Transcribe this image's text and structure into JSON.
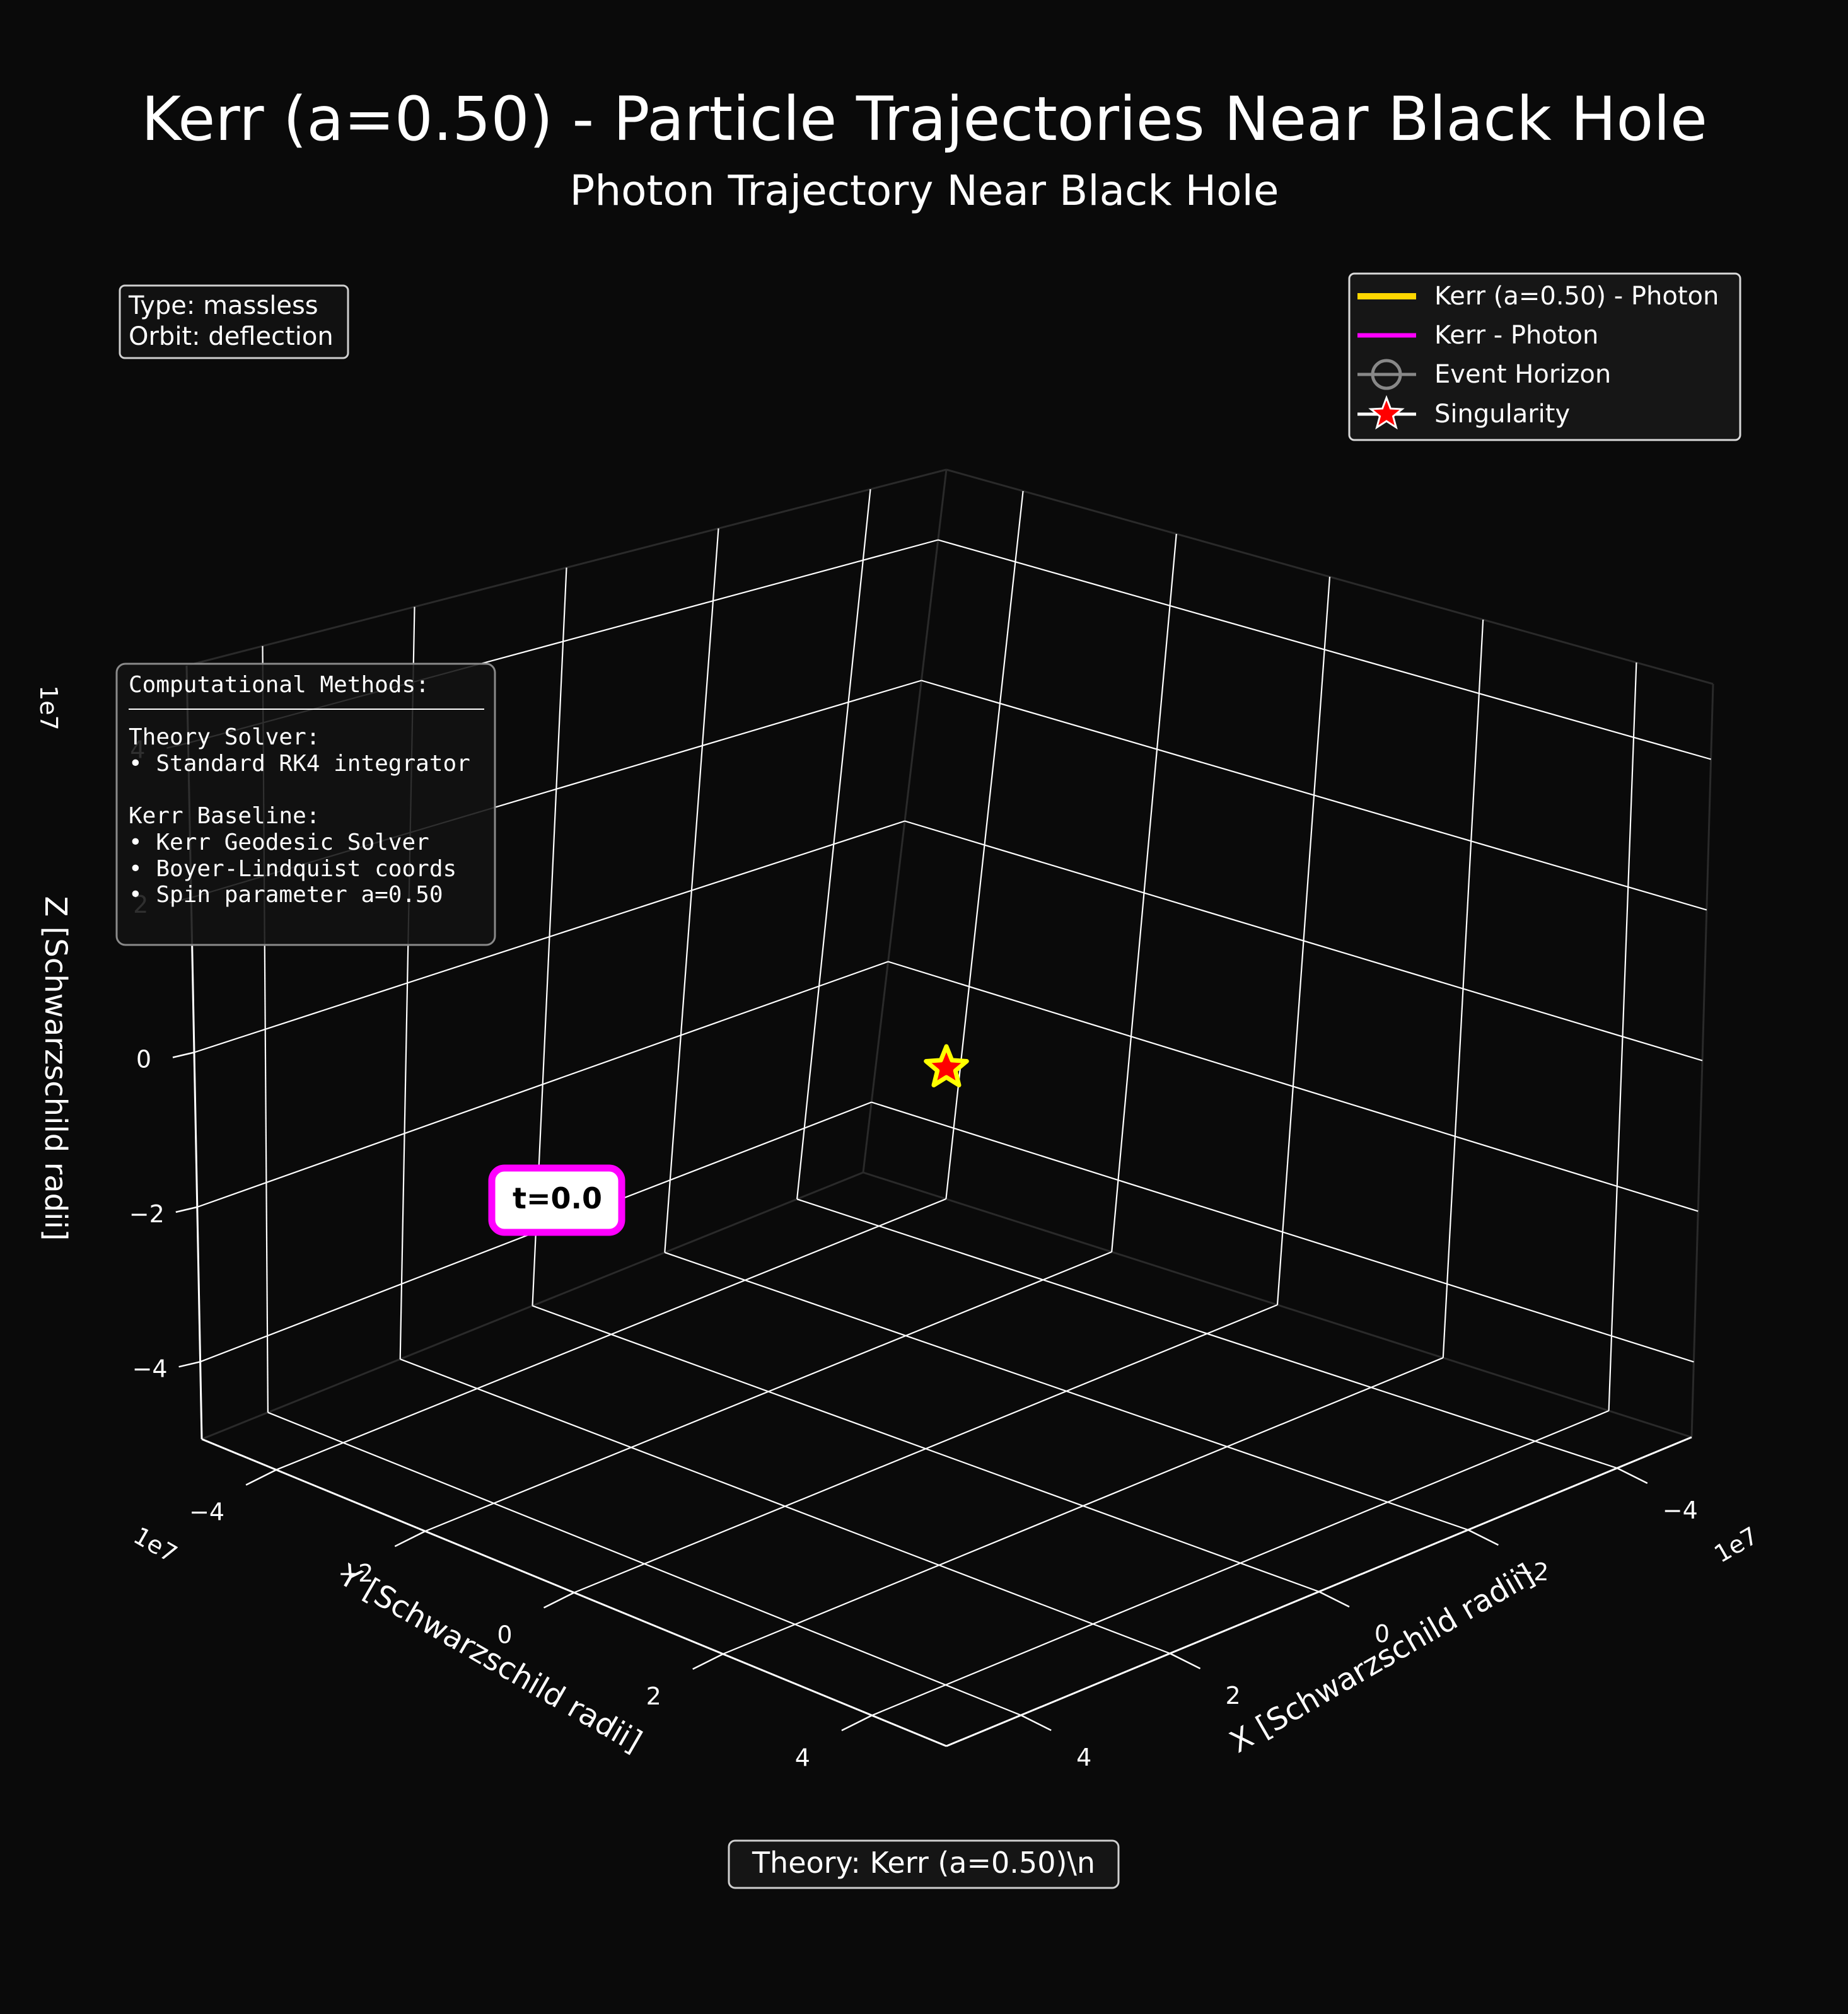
{
  "title": "Kerr (a=0.50) - Particle Trajectories Near Black Hole",
  "subtitle": "Photon Trajectory Near Black Hole",
  "info_box": {
    "type_line": "Type: massless",
    "orbit_line": "Orbit: deflection"
  },
  "legend": {
    "placement": "top-right",
    "items": [
      {
        "label": "Kerr (a=0.50) - Photon",
        "color": "#FFD700",
        "icon": "line"
      },
      {
        "label": "Kerr - Photon",
        "color": "#FF00FF",
        "icon": "line"
      },
      {
        "label": "Event Horizon",
        "color": "#888888",
        "icon": "circle-marker-line"
      },
      {
        "label": "Singularity",
        "color": "#FF0000",
        "icon": "star-marker-line"
      }
    ]
  },
  "methods_box": {
    "heading": "Computational Methods:",
    "lines": [
      "Theory Solver:",
      "• Standard RK4 integrator",
      "",
      "Kerr Baseline:",
      "• Kerr Geodesic Solver",
      "• Boyer-Lindquist coords",
      "• Spin parameter a=0.50"
    ]
  },
  "time_label": "t=0.0",
  "footer": "Theory: Kerr (a=0.50)\\n",
  "colors": {
    "background": "#0a0a0a",
    "grid": "#ffffff",
    "theory_line": "#FFD700",
    "baseline_line": "#FF00FF",
    "singularity_fill": "#FF0000",
    "singularity_edge": "#FFFF00"
  },
  "chart_data": {
    "type": "scatter",
    "projection": "3d",
    "title": "Kerr (a=0.50) - Particle Trajectories Near Black Hole",
    "subtitle": "Photon Trajectory Near Black Hole",
    "axes": {
      "x": {
        "label": "X [Schwarzschild radii]",
        "offset_text": "1e7",
        "lim": [
          -5,
          5
        ],
        "ticks": [
          -4,
          -2,
          0,
          2,
          4
        ],
        "tick_labels": [
          "−4",
          "−2",
          "0",
          "2",
          "4"
        ]
      },
      "y": {
        "label": "Y [Schwarzschild radii]",
        "offset_text": "1e7",
        "lim": [
          -5,
          5
        ],
        "ticks": [
          -4,
          -2,
          0,
          2,
          4
        ],
        "tick_labels": [
          "−4",
          "−2",
          "0",
          "2",
          "4"
        ]
      },
      "z": {
        "label": "Z [Schwarzschild radii]",
        "offset_text": "1e7",
        "lim": [
          -5,
          5
        ],
        "ticks": [
          -4,
          -2,
          0,
          2,
          4
        ],
        "tick_labels": [
          "−4",
          "−2",
          "0",
          "2",
          "4"
        ]
      }
    },
    "grid": true,
    "legend_position": "top-right",
    "series": [
      {
        "name": "Kerr (a=0.50) - Photon",
        "points": []
      },
      {
        "name": "Kerr - Photon",
        "points": []
      }
    ],
    "markers": [
      {
        "name": "Singularity",
        "x": 0,
        "y": 0,
        "z": 0,
        "shape": "star"
      }
    ]
  }
}
